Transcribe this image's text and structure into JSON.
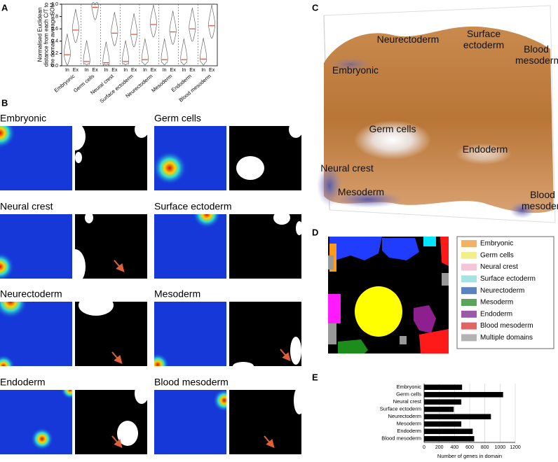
{
  "panel_labels": [
    "A",
    "B",
    "C",
    "D",
    "E"
  ],
  "chart_data": [
    {
      "type": "violin",
      "y_label": "Normalised Euclidean distance from each C/T to the domain average SOM",
      "categories": [
        "Embryonic",
        "Germ cells",
        "Neural crest",
        "Surface ectoderm",
        "Neurectoderm",
        "Mesoderm",
        "Endoderm",
        "Blood mesoderm"
      ],
      "series": [
        {
          "name": "In",
          "color": "#e8452c",
          "values": [
            0.18,
            0.07,
            0.05,
            0.07,
            0.1,
            0.1,
            0.1,
            0.11
          ]
        },
        {
          "name": "Ex",
          "color": "#e8452c",
          "values": [
            0.58,
            0.95,
            0.53,
            0.51,
            0.67,
            0.55,
            0.6,
            0.65
          ]
        }
      ],
      "ylim": [
        0,
        1
      ],
      "yticks": [
        {
          "value": 0,
          "label": "0.0"
        },
        0.2,
        0.4,
        0.6,
        0.8,
        {
          "value": 1,
          "label": "1.0"
        }
      ]
    },
    {
      "type": "bar",
      "orientation": "horizontal",
      "x_label": "Number of genes in domain",
      "categories": [
        "Embryonic",
        "Germ cells",
        "Neural crest",
        "Surface ectoderm",
        "Neurectoderm",
        "Mesoderm",
        "Endoderm",
        "Blood mesoderm"
      ],
      "values": [
        500,
        1040,
        490,
        390,
        880,
        490,
        640,
        660
      ],
      "color": "#000000",
      "xlim": [
        0,
        1200
      ],
      "xticks": [
        0,
        200,
        400,
        600,
        800,
        1000,
        1200
      ],
      "grid": true
    }
  ],
  "panel_b": {
    "titles": [
      "Embryonic",
      "Germ cells",
      "Neural crest",
      "Surface ectoderm",
      "Neurectoderm",
      "Mesoderm",
      "Endoderm",
      "Blood mesoderm"
    ]
  },
  "panel_c": {
    "labels": [
      "Neurectoderm",
      "Surface ectoderm",
      "Blood mesoderm",
      "Embryonic",
      "Germ cells",
      "Endoderm",
      "Neural crest",
      "Mesoderm",
      "Blood mesoderm"
    ]
  },
  "panel_d": {
    "legend": [
      {
        "name": "Embryonic",
        "color": "#f2b266"
      },
      {
        "name": "Germ cells",
        "color": "#f0ef8a"
      },
      {
        "name": "Neural crest",
        "color": "#f2c6d6"
      },
      {
        "name": "Surface ectoderm",
        "color": "#a6e2e2"
      },
      {
        "name": "Neurectoderm",
        "color": "#5b82bf"
      },
      {
        "name": "Mesoderm",
        "color": "#5aa55a"
      },
      {
        "name": "Endoderm",
        "color": "#9a5aa8"
      },
      {
        "name": "Blood mesoderm",
        "color": "#e06666"
      },
      {
        "name": "Multiple domains",
        "color": "#b3b3b3"
      }
    ]
  }
}
